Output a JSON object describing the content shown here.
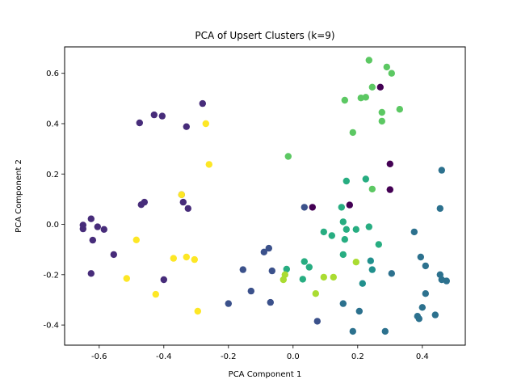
{
  "chart_data": {
    "type": "scatter",
    "title": "PCA of Upsert Clusters (k=9)",
    "xlabel": "PCA Component 1",
    "ylabel": "PCA Component 2",
    "xlim": [
      -0.707,
      0.533
    ],
    "ylim": [
      -0.48,
      0.705
    ],
    "xticks": [
      "-0.6",
      "-0.4",
      "-0.2",
      "0.0",
      "0.2",
      "0.4"
    ],
    "yticks": [
      "-0.4",
      "-0.2",
      "0.0",
      "0.2",
      "0.4",
      "0.6"
    ],
    "xtick_values": [
      -0.6,
      -0.4,
      -0.2,
      0.0,
      0.2,
      0.4
    ],
    "ytick_values": [
      -0.4,
      -0.2,
      0.0,
      0.2,
      0.4,
      0.6
    ],
    "grid": false,
    "legend": "none",
    "series": [
      {
        "cluster": 0,
        "color": "#440154",
        "points": [
          [
            0.27,
            0.545
          ],
          [
            0.06,
            0.068
          ],
          [
            0.175,
            0.077
          ],
          [
            0.3,
            0.24
          ],
          [
            0.3,
            0.138
          ]
        ]
      },
      {
        "cluster": 1,
        "color": "#472c7a",
        "points": [
          [
            -0.28,
            0.48
          ],
          [
            -0.43,
            0.435
          ],
          [
            -0.405,
            0.43
          ],
          [
            -0.475,
            0.403
          ],
          [
            -0.33,
            0.388
          ],
          [
            -0.625,
            0.022
          ],
          [
            -0.65,
            -0.003
          ],
          [
            -0.65,
            -0.018
          ],
          [
            -0.605,
            -0.01
          ],
          [
            -0.585,
            -0.02
          ],
          [
            -0.62,
            -0.063
          ],
          [
            -0.555,
            -0.12
          ],
          [
            -0.625,
            -0.195
          ],
          [
            -0.345,
            0.118
          ],
          [
            -0.34,
            0.088
          ],
          [
            -0.325,
            0.063
          ],
          [
            -0.46,
            0.088
          ],
          [
            -0.47,
            0.078
          ],
          [
            -0.4,
            -0.22
          ]
        ]
      },
      {
        "cluster": 2,
        "color": "#3b518b",
        "points": [
          [
            0.035,
            0.068
          ],
          [
            -0.075,
            -0.095
          ],
          [
            -0.09,
            -0.11
          ],
          [
            -0.065,
            -0.185
          ],
          [
            -0.155,
            -0.18
          ],
          [
            -0.13,
            -0.265
          ],
          [
            -0.2,
            -0.315
          ],
          [
            -0.07,
            -0.31
          ],
          [
            0.075,
            -0.385
          ]
        ]
      },
      {
        "cluster": 3,
        "color": "#2c718e",
        "points": [
          [
            0.46,
            0.215
          ],
          [
            0.455,
            0.063
          ],
          [
            0.375,
            -0.03
          ],
          [
            0.395,
            -0.13
          ],
          [
            0.41,
            -0.165
          ],
          [
            0.305,
            -0.195
          ],
          [
            0.455,
            -0.2
          ],
          [
            0.46,
            -0.22
          ],
          [
            0.475,
            -0.225
          ],
          [
            0.41,
            -0.275
          ],
          [
            0.155,
            -0.315
          ],
          [
            0.205,
            -0.345
          ],
          [
            0.4,
            -0.33
          ],
          [
            0.385,
            -0.365
          ],
          [
            0.39,
            -0.375
          ],
          [
            0.44,
            -0.36
          ],
          [
            0.185,
            -0.425
          ],
          [
            0.285,
            -0.425
          ]
        ]
      },
      {
        "cluster": 4,
        "color": "#21908d",
        "points": [
          [
            0.24,
            -0.145
          ],
          [
            0.245,
            -0.18
          ],
          [
            0.215,
            -0.235
          ]
        ]
      },
      {
        "cluster": 5,
        "color": "#27ad81",
        "points": [
          [
            0.165,
            0.172
          ],
          [
            0.225,
            0.18
          ],
          [
            0.15,
            0.068
          ],
          [
            0.155,
            0.01
          ],
          [
            0.165,
            -0.02
          ],
          [
            0.235,
            -0.01
          ],
          [
            0.195,
            -0.02
          ],
          [
            0.095,
            -0.03
          ],
          [
            0.12,
            -0.045
          ],
          [
            0.16,
            -0.06
          ],
          [
            0.265,
            -0.08
          ],
          [
            0.155,
            -0.12
          ],
          [
            0.035,
            -0.148
          ],
          [
            0.05,
            -0.17
          ],
          [
            -0.02,
            -0.178
          ],
          [
            0.03,
            -0.218
          ]
        ]
      },
      {
        "cluster": 6,
        "color": "#5cc863",
        "points": [
          [
            0.235,
            0.652
          ],
          [
            0.29,
            0.625
          ],
          [
            0.305,
            0.6
          ],
          [
            0.245,
            0.545
          ],
          [
            0.21,
            0.502
          ],
          [
            0.225,
            0.505
          ],
          [
            0.16,
            0.493
          ],
          [
            0.33,
            0.457
          ],
          [
            0.275,
            0.445
          ],
          [
            0.275,
            0.41
          ],
          [
            0.185,
            0.365
          ],
          [
            -0.015,
            0.27
          ],
          [
            0.245,
            0.14
          ]
        ]
      },
      {
        "cluster": 7,
        "color": "#aadc32",
        "points": [
          [
            0.195,
            -0.15
          ],
          [
            0.095,
            -0.21
          ],
          [
            0.125,
            -0.21
          ],
          [
            -0.025,
            -0.2
          ],
          [
            -0.03,
            -0.22
          ],
          [
            0.07,
            -0.275
          ]
        ]
      },
      {
        "cluster": 8,
        "color": "#fde725",
        "points": [
          [
            -0.3,
            0.385
          ],
          [
            -0.3,
            0.38
          ],
          [
            -0.3,
            0.38
          ]
        ]
      },
      {
        "cluster": 8,
        "color": "#fde725",
        "points": [
          [
            -0.27,
            0.4
          ],
          [
            -0.26,
            0.238
          ],
          [
            -0.345,
            0.118
          ],
          [
            -0.485,
            -0.062
          ],
          [
            -0.37,
            -0.135
          ],
          [
            -0.33,
            -0.13
          ],
          [
            -0.305,
            -0.14
          ],
          [
            -0.515,
            -0.215
          ],
          [
            -0.425,
            -0.278
          ],
          [
            -0.295,
            -0.345
          ]
        ]
      }
    ]
  }
}
